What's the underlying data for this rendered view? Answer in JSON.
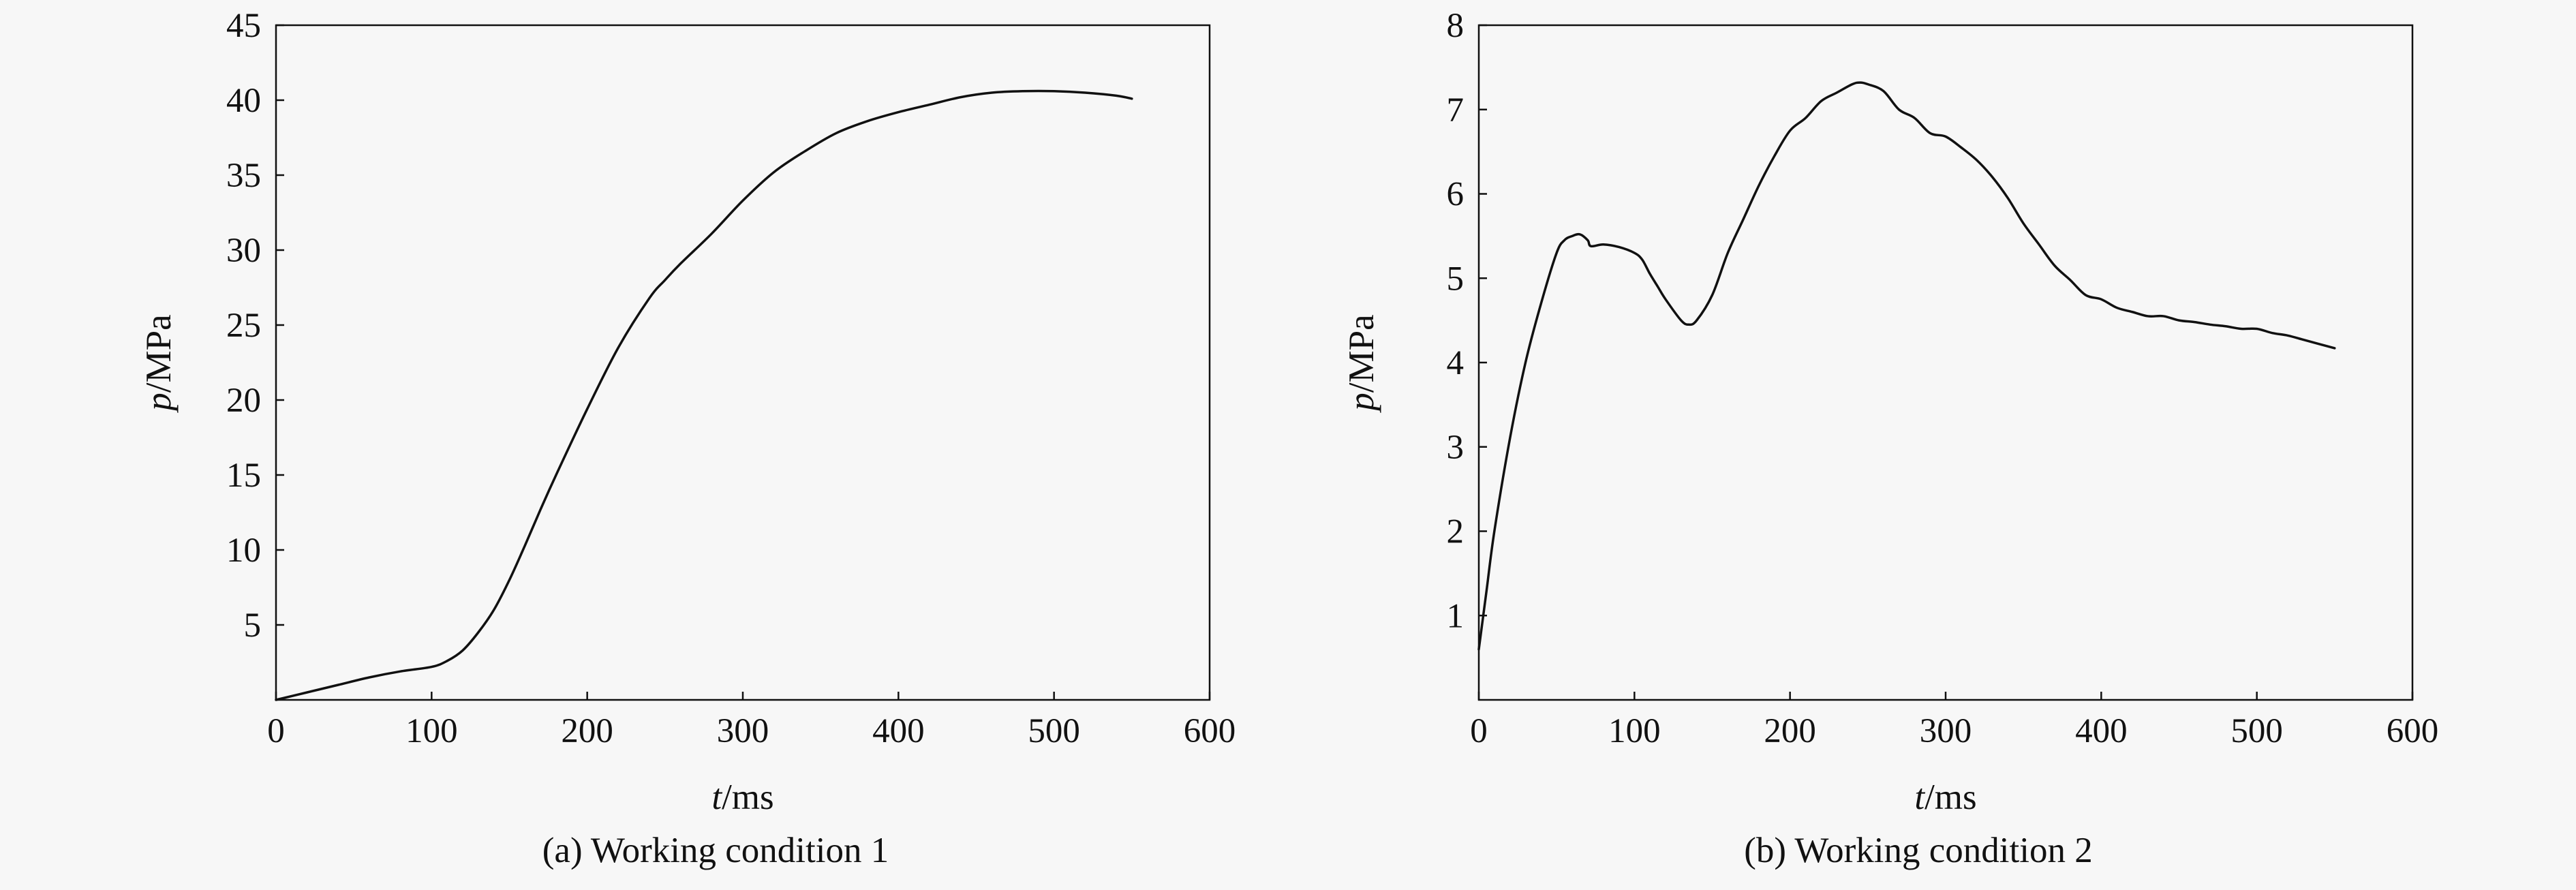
{
  "chart_data": [
    {
      "type": "line",
      "title": "",
      "caption": "(a) Working condition 1",
      "xlabel_var": "t",
      "xlabel_unit": "/ms",
      "ylabel_var": "p",
      "ylabel_unit": "/MPa",
      "xlim": [
        0,
        600
      ],
      "ylim": [
        0,
        45
      ],
      "xticks": [
        0,
        100,
        200,
        300,
        400,
        500,
        600
      ],
      "yticks": [
        5,
        10,
        15,
        20,
        25,
        30,
        35,
        40,
        45
      ],
      "grid": false,
      "series": [
        {
          "x": [
            0,
            20,
            40,
            60,
            80,
            100,
            110,
            120,
            130,
            140,
            150,
            160,
            170,
            180,
            200,
            220,
            240,
            250,
            260,
            280,
            300,
            320,
            340,
            360,
            380,
            400,
            420,
            440,
            460,
            480,
            500,
            520,
            540,
            550
          ],
          "y": [
            0,
            0.5,
            1.0,
            1.5,
            1.9,
            2.2,
            2.6,
            3.3,
            4.5,
            6.0,
            8.0,
            10.3,
            12.7,
            15.0,
            19.4,
            23.5,
            26.8,
            28.0,
            29.1,
            31.1,
            33.3,
            35.2,
            36.6,
            37.8,
            38.6,
            39.2,
            39.7,
            40.2,
            40.5,
            40.6,
            40.6,
            40.5,
            40.3,
            40.1
          ]
        }
      ]
    },
    {
      "type": "line",
      "title": "",
      "caption": "(b) Working condition 2",
      "xlabel_var": "t",
      "xlabel_unit": "/ms",
      "ylabel_var": "p",
      "ylabel_unit": "/MPa",
      "xlim": [
        0,
        600
      ],
      "ylim": [
        0,
        8
      ],
      "xticks": [
        0,
        100,
        200,
        300,
        400,
        500,
        600
      ],
      "yticks": [
        1,
        2,
        3,
        4,
        5,
        6,
        7,
        8
      ],
      "grid": false,
      "series": [
        {
          "x": [
            0,
            5,
            10,
            20,
            30,
            40,
            50,
            55,
            60,
            65,
            70,
            72,
            80,
            90,
            100,
            105,
            110,
            115,
            120,
            130,
            135,
            140,
            150,
            160,
            170,
            180,
            190,
            200,
            210,
            220,
            230,
            240,
            245,
            250,
            260,
            270,
            280,
            290,
            300,
            310,
            320,
            330,
            340,
            350,
            360,
            370,
            380,
            390,
            400,
            410,
            420,
            430,
            440,
            450,
            460,
            470,
            480,
            490,
            500,
            510,
            520,
            530,
            540,
            550
          ],
          "y": [
            0.6,
            1.3,
            2.0,
            3.1,
            4.0,
            4.7,
            5.3,
            5.45,
            5.5,
            5.52,
            5.45,
            5.38,
            5.4,
            5.37,
            5.3,
            5.22,
            5.05,
            4.9,
            4.75,
            4.5,
            4.45,
            4.5,
            4.8,
            5.3,
            5.7,
            6.1,
            6.45,
            6.75,
            6.9,
            7.1,
            7.2,
            7.3,
            7.32,
            7.3,
            7.22,
            7.0,
            6.9,
            6.72,
            6.68,
            6.55,
            6.4,
            6.2,
            5.95,
            5.65,
            5.4,
            5.15,
            4.98,
            4.8,
            4.75,
            4.65,
            4.6,
            4.55,
            4.55,
            4.5,
            4.48,
            4.45,
            4.43,
            4.4,
            4.4,
            4.35,
            4.32,
            4.27,
            4.22,
            4.17
          ]
        }
      ]
    }
  ]
}
